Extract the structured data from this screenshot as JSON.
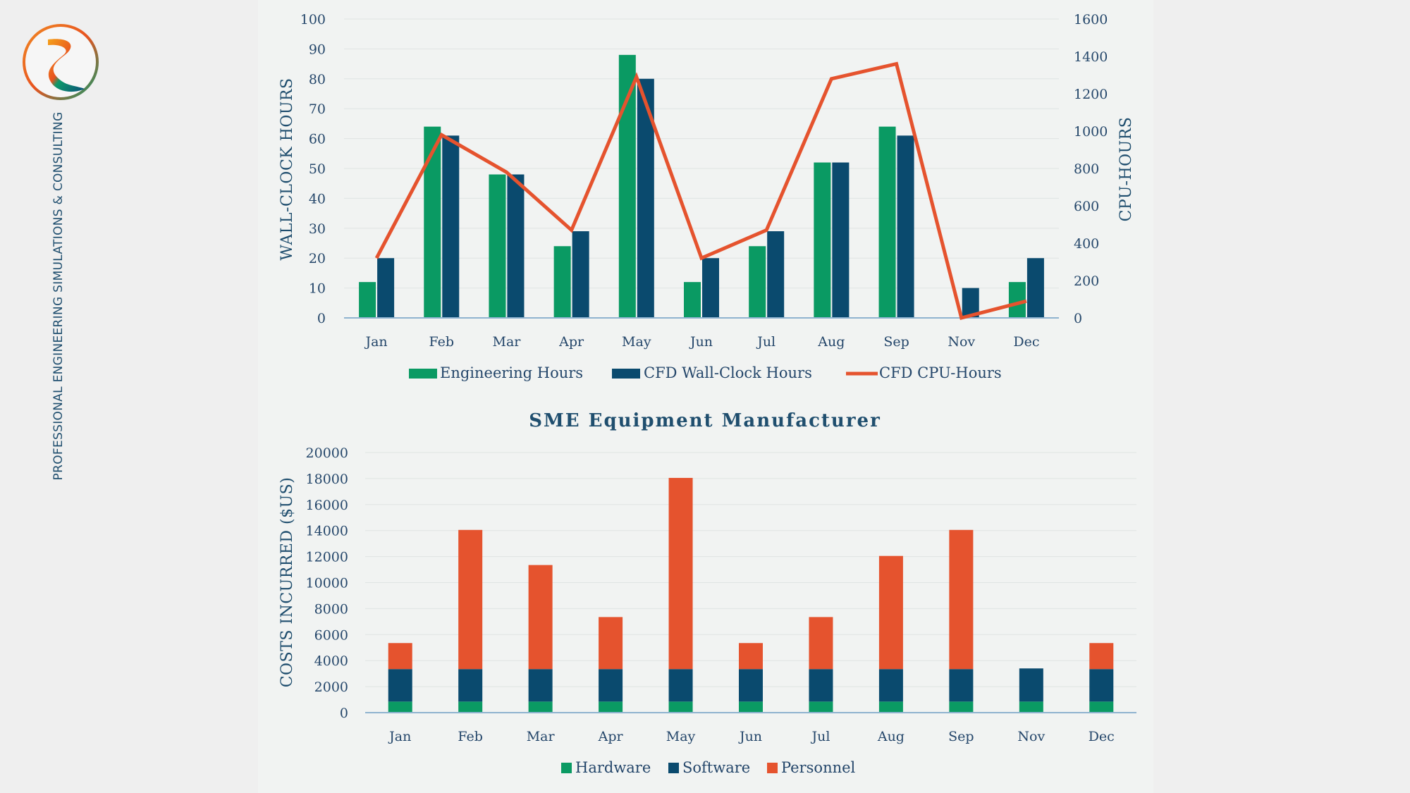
{
  "tagline": "PROFESSIONAL ENGINEERING  SIMULATIONS & CONSULTING",
  "logo": {
    "name": "company-logo",
    "colors": [
      "#e8531f",
      "#f5a11a",
      "#0d9a6a",
      "#0a4f79"
    ]
  },
  "colors": {
    "engineering": "#0a9a63",
    "cfd_wall": "#0a4a6e",
    "cpu_line": "#e5532e",
    "hardware": "#0a9a63",
    "software": "#0a4a6e",
    "personnel": "#e5532e",
    "grid": "#dfe4e3",
    "baseline": "#8fb3cf"
  },
  "chart_data": [
    {
      "type": "bar",
      "title": "",
      "categories": [
        "Jan",
        "Feb",
        "Mar",
        "Apr",
        "May",
        "Jun",
        "Jul",
        "Aug",
        "Sep",
        "Nov",
        "Dec"
      ],
      "series": [
        {
          "name": "Engineering Hours",
          "axis": "left",
          "type": "bar",
          "values": [
            12,
            64,
            48,
            24,
            88,
            12,
            24,
            52,
            64,
            0,
            12
          ]
        },
        {
          "name": "CFD Wall-Clock Hours",
          "axis": "left",
          "type": "bar",
          "values": [
            20,
            61,
            48,
            29,
            80,
            20,
            29,
            52,
            61,
            10,
            20
          ]
        },
        {
          "name": "CFD CPU-Hours",
          "axis": "right",
          "type": "line",
          "values": [
            320,
            980,
            780,
            470,
            1290,
            320,
            470,
            1280,
            1360,
            0,
            90
          ]
        }
      ],
      "ylabel": "WALL-CLOCK HOURS",
      "ylim": [
        0,
        100
      ],
      "yticks": [
        0,
        10,
        20,
        30,
        40,
        50,
        60,
        70,
        80,
        90,
        100
      ],
      "y2label": "CPU-HOURS",
      "y2lim": [
        0,
        1600
      ],
      "y2ticks": [
        0,
        200,
        400,
        600,
        800,
        1000,
        1200,
        1400,
        1600
      ],
      "grid": true,
      "legend": "bottom"
    },
    {
      "type": "bar",
      "stacked": true,
      "title": "SME Equipment Manufacturer",
      "categories": [
        "Jan",
        "Feb",
        "Mar",
        "Apr",
        "May",
        "Jun",
        "Jul",
        "Aug",
        "Sep",
        "Nov",
        "Dec"
      ],
      "series": [
        {
          "name": "Hardware",
          "values": [
            850,
            850,
            850,
            850,
            850,
            850,
            850,
            850,
            850,
            850,
            850
          ]
        },
        {
          "name": "Software",
          "values": [
            2500,
            2500,
            2500,
            2500,
            2500,
            2500,
            2500,
            2500,
            2500,
            2550,
            2500
          ]
        },
        {
          "name": "Personnel",
          "values": [
            2000,
            10700,
            8000,
            4000,
            14700,
            2000,
            4000,
            8700,
            10700,
            0,
            2000
          ]
        }
      ],
      "ylabel": "COSTS INCURRED ($US)",
      "ylim": [
        0,
        20000
      ],
      "yticks": [
        0,
        2000,
        4000,
        6000,
        8000,
        10000,
        12000,
        14000,
        16000,
        18000,
        20000
      ],
      "grid": true,
      "legend": "bottom"
    }
  ]
}
